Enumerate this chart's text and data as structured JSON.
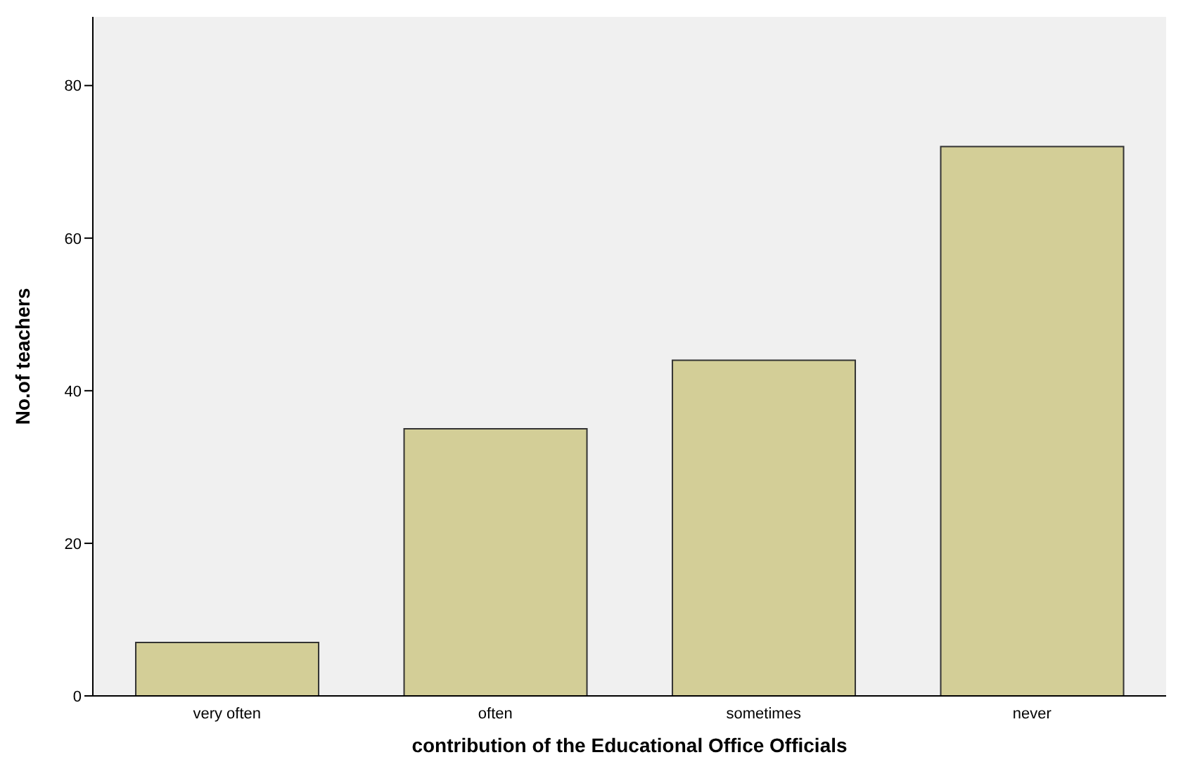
{
  "chart_data": {
    "type": "bar",
    "xlabel": "contribution of the Educational Office Officials",
    "ylabel": "No.of teachers",
    "categories": [
      "very often",
      "often",
      "sometimes",
      "never"
    ],
    "values": [
      7,
      35,
      44,
      72
    ],
    "color": "#d3ce97",
    "ylim": [
      0,
      89
    ],
    "yticks": [
      0,
      20,
      40,
      60,
      80
    ]
  }
}
